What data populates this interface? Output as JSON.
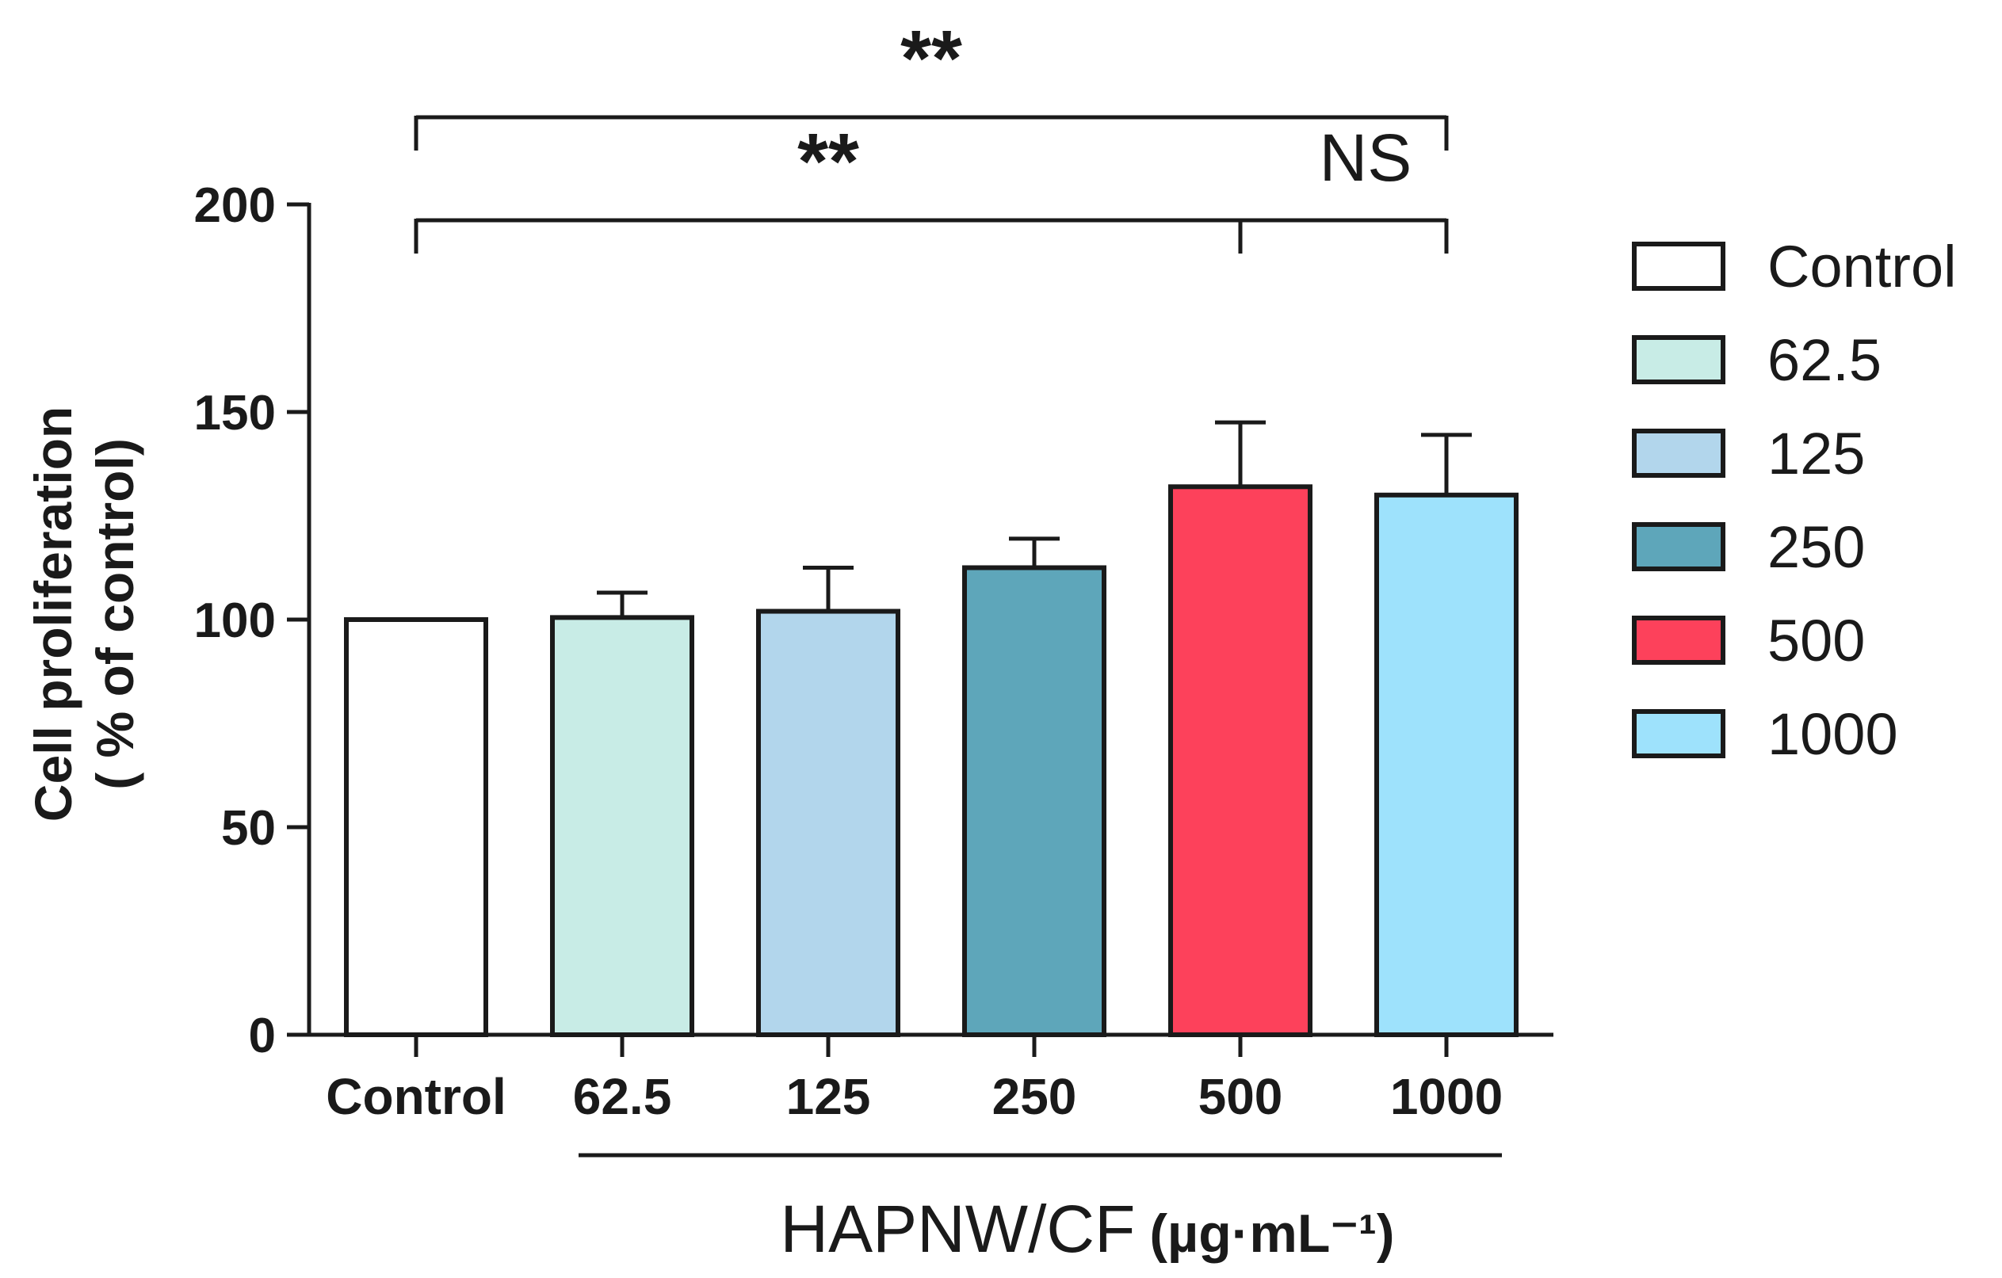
{
  "chart_data": {
    "type": "bar",
    "categories": [
      "Control",
      "62.5",
      "125",
      "250",
      "500",
      "1000"
    ],
    "values": [
      100,
      100.5,
      102,
      112.5,
      132,
      130
    ],
    "errors": [
      0,
      6,
      10.5,
      7,
      15.5,
      14.5
    ],
    "colors": [
      "#ffffff",
      "#c8ece6",
      "#b2d6ec",
      "#5ea6ba",
      "#fd415b",
      "#9ee2fc"
    ],
    "ylabel_line1": "Cell proliferation",
    "ylabel_line2": "( % of control)",
    "xlabel_name": "HAPNW/CF",
    "xlabel_unit": "(µg·mL⁻¹)",
    "ylim": [
      0,
      200
    ],
    "yticks": [
      0,
      50,
      100,
      150,
      200
    ],
    "legend": {
      "position": "right",
      "entries": [
        "Control",
        "62.5",
        "125",
        "250",
        "500",
        "1000"
      ]
    },
    "annotations": [
      {
        "from": "Control",
        "to": "1000",
        "label": "**"
      },
      {
        "from": "Control",
        "to": "500",
        "label": "**"
      },
      {
        "from": "500",
        "to": "1000",
        "label": "NS"
      }
    ]
  }
}
